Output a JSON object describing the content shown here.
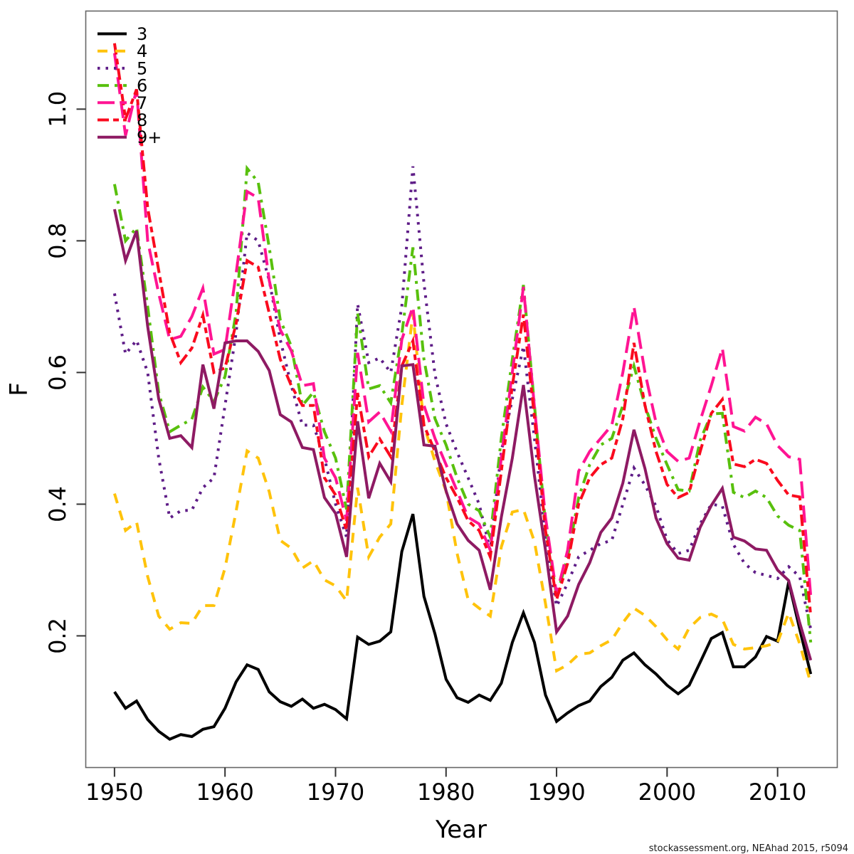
{
  "figure": {
    "background": "#ffffff",
    "border_color": "#666666",
    "tick_color": "#333333"
  },
  "footer": {
    "credit": "stockassessment.org, NEAhad 2015, r5094"
  },
  "chart_data": {
    "type": "line",
    "title": "",
    "xlabel": "Year",
    "ylabel": "F",
    "grid": false,
    "legend_position": "top-left",
    "xlim": [
      1947.4,
      2015.4
    ],
    "ylim": [
      0,
      1.149
    ],
    "x_ticks": [
      1950,
      1960,
      1970,
      1980,
      1990,
      2000,
      2010
    ],
    "y_ticks": [
      "0.2",
      "0.4",
      "0.6",
      "0.8",
      "1.0"
    ],
    "x": [
      1950,
      1951,
      1952,
      1953,
      1954,
      1955,
      1956,
      1957,
      1958,
      1959,
      1960,
      1961,
      1962,
      1963,
      1964,
      1965,
      1966,
      1967,
      1968,
      1969,
      1970,
      1971,
      1972,
      1973,
      1974,
      1975,
      1976,
      1977,
      1978,
      1979,
      1980,
      1981,
      1982,
      1983,
      1984,
      1985,
      1986,
      1987,
      1988,
      1989,
      1990,
      1991,
      1992,
      1993,
      1994,
      1995,
      1996,
      1997,
      1998,
      1999,
      2000,
      2001,
      2002,
      2003,
      2004,
      2005,
      2006,
      2007,
      2008,
      2009,
      2010,
      2011,
      2012,
      2013
    ],
    "series": [
      {
        "name": "3",
        "color": "#000000",
        "dash": "solid",
        "values": [
          0.115,
          0.09,
          0.101,
          0.073,
          0.055,
          0.043,
          0.05,
          0.047,
          0.058,
          0.062,
          0.09,
          0.13,
          0.156,
          0.149,
          0.115,
          0.1,
          0.093,
          0.104,
          0.09,
          0.096,
          0.088,
          0.074,
          0.198,
          0.187,
          0.192,
          0.206,
          0.328,
          0.385,
          0.26,
          0.203,
          0.134,
          0.106,
          0.099,
          0.11,
          0.102,
          0.128,
          0.19,
          0.235,
          0.19,
          0.11,
          0.07,
          0.083,
          0.094,
          0.101,
          0.123,
          0.137,
          0.163,
          0.174,
          0.156,
          0.142,
          0.125,
          0.112,
          0.125,
          0.16,
          0.196,
          0.205,
          0.153,
          0.153,
          0.168,
          0.199,
          0.192,
          0.282,
          0.21,
          0.142
        ]
      },
      {
        "name": "4",
        "color": "#FFC30B",
        "dash": "dashed",
        "values": [
          0.416,
          0.36,
          0.373,
          0.29,
          0.23,
          0.21,
          0.22,
          0.219,
          0.246,
          0.246,
          0.303,
          0.389,
          0.481,
          0.47,
          0.419,
          0.345,
          0.333,
          0.303,
          0.314,
          0.285,
          0.276,
          0.253,
          0.425,
          0.32,
          0.35,
          0.37,
          0.55,
          0.69,
          0.52,
          0.465,
          0.42,
          0.325,
          0.255,
          0.242,
          0.23,
          0.335,
          0.388,
          0.392,
          0.343,
          0.249,
          0.147,
          0.156,
          0.172,
          0.174,
          0.185,
          0.194,
          0.22,
          0.242,
          0.231,
          0.214,
          0.194,
          0.18,
          0.212,
          0.228,
          0.233,
          0.225,
          0.187,
          0.18,
          0.182,
          0.185,
          0.19,
          0.235,
          0.188,
          0.128
        ]
      },
      {
        "name": "5",
        "color": "#5E1C87",
        "dash": "dotted",
        "values": [
          0.72,
          0.628,
          0.649,
          0.6,
          0.47,
          0.379,
          0.39,
          0.391,
          0.425,
          0.44,
          0.55,
          0.66,
          0.812,
          0.8,
          0.74,
          0.65,
          0.58,
          0.52,
          0.52,
          0.47,
          0.4,
          0.35,
          0.704,
          0.615,
          0.622,
          0.6,
          0.7,
          0.913,
          0.736,
          0.597,
          0.522,
          0.479,
          0.44,
          0.4,
          0.33,
          0.48,
          0.56,
          0.64,
          0.5,
          0.35,
          0.245,
          0.28,
          0.32,
          0.33,
          0.34,
          0.345,
          0.4,
          0.455,
          0.429,
          0.397,
          0.346,
          0.325,
          0.33,
          0.37,
          0.4,
          0.397,
          0.339,
          0.31,
          0.296,
          0.292,
          0.287,
          0.305,
          0.29,
          0.21
        ]
      },
      {
        "name": "6",
        "color": "#58C00D",
        "dash": "dashdot",
        "values": [
          0.886,
          0.8,
          0.82,
          0.7,
          0.57,
          0.51,
          0.52,
          0.529,
          0.578,
          0.556,
          0.594,
          0.69,
          0.91,
          0.889,
          0.79,
          0.68,
          0.64,
          0.55,
          0.57,
          0.51,
          0.47,
          0.392,
          0.69,
          0.575,
          0.58,
          0.554,
          0.658,
          0.79,
          0.62,
          0.53,
          0.49,
          0.44,
          0.4,
          0.39,
          0.35,
          0.5,
          0.62,
          0.733,
          0.55,
          0.37,
          0.26,
          0.32,
          0.41,
          0.46,
          0.49,
          0.5,
          0.55,
          0.61,
          0.55,
          0.5,
          0.46,
          0.422,
          0.42,
          0.497,
          0.537,
          0.538,
          0.418,
          0.41,
          0.42,
          0.41,
          0.382,
          0.368,
          0.36,
          0.19
        ]
      },
      {
        "name": "7",
        "color": "#FF1493",
        "dash": "longdash",
        "values": [
          1.085,
          0.96,
          1.03,
          0.8,
          0.72,
          0.65,
          0.655,
          0.685,
          0.728,
          0.628,
          0.635,
          0.75,
          0.875,
          0.865,
          0.74,
          0.665,
          0.633,
          0.58,
          0.583,
          0.47,
          0.44,
          0.375,
          0.63,
          0.525,
          0.54,
          0.511,
          0.65,
          0.7,
          0.55,
          0.5,
          0.46,
          0.42,
          0.38,
          0.37,
          0.33,
          0.47,
          0.6,
          0.73,
          0.547,
          0.38,
          0.263,
          0.33,
          0.45,
          0.48,
          0.5,
          0.52,
          0.6,
          0.7,
          0.6,
          0.524,
          0.48,
          0.465,
          0.47,
          0.527,
          0.58,
          0.637,
          0.518,
          0.511,
          0.532,
          0.522,
          0.489,
          0.472,
          0.468,
          0.26
        ]
      },
      {
        "name": "8",
        "color": "#FA0A1E",
        "dash": "twodash",
        "values": [
          1.1,
          0.985,
          1.03,
          0.85,
          0.755,
          0.66,
          0.615,
          0.637,
          0.687,
          0.6,
          0.607,
          0.674,
          0.77,
          0.76,
          0.69,
          0.62,
          0.58,
          0.55,
          0.55,
          0.44,
          0.414,
          0.36,
          0.569,
          0.472,
          0.499,
          0.472,
          0.61,
          0.648,
          0.52,
          0.48,
          0.44,
          0.41,
          0.375,
          0.36,
          0.32,
          0.45,
          0.58,
          0.688,
          0.532,
          0.36,
          0.255,
          0.31,
          0.4,
          0.44,
          0.46,
          0.47,
          0.53,
          0.645,
          0.55,
          0.48,
          0.43,
          0.41,
          0.418,
          0.48,
          0.538,
          0.559,
          0.461,
          0.457,
          0.468,
          0.462,
          0.436,
          0.414,
          0.411,
          0.23
        ]
      },
      {
        "name": "9+",
        "color": "#8E1A63",
        "dash": "solid",
        "values": [
          0.848,
          0.77,
          0.815,
          0.67,
          0.56,
          0.5,
          0.504,
          0.486,
          0.612,
          0.545,
          0.645,
          0.648,
          0.648,
          0.632,
          0.603,
          0.536,
          0.525,
          0.486,
          0.483,
          0.41,
          0.386,
          0.32,
          0.526,
          0.409,
          0.462,
          0.434,
          0.61,
          0.612,
          0.49,
          0.488,
          0.42,
          0.37,
          0.345,
          0.33,
          0.27,
          0.38,
          0.47,
          0.581,
          0.443,
          0.33,
          0.206,
          0.23,
          0.278,
          0.311,
          0.357,
          0.379,
          0.432,
          0.513,
          0.454,
          0.379,
          0.34,
          0.318,
          0.315,
          0.365,
          0.398,
          0.424,
          0.35,
          0.344,
          0.332,
          0.33,
          0.3,
          0.284,
          0.22,
          0.163
        ]
      }
    ]
  }
}
